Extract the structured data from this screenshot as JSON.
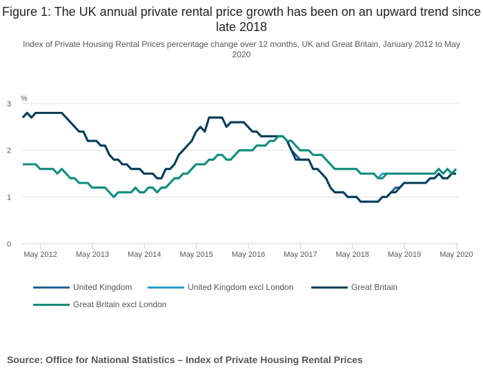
{
  "title": "Figure 1: The UK annual private rental price growth has been on an upward trend since late 2018",
  "subtitle": "Index of Private Housing Rental Prices percentage change over 12 months, UK and Great Britain, January 2012 to May 2020",
  "source": "Source: Office for National Statistics – Index of Private Housing Rental Prices",
  "chart_data": {
    "type": "line",
    "title": "Figure 1: The UK annual private rental price growth has been on an upward trend since late 2018",
    "xlabel": "",
    "ylabel": "%",
    "ylim": [
      0,
      3
    ],
    "yticks": [
      0,
      1,
      2,
      3
    ],
    "grid": true,
    "legend_position": "bottom",
    "x_start": "Jan 2012",
    "x_end": "May 2020",
    "x_tick_labels": [
      "May 2012",
      "May 2013",
      "May 2014",
      "May 2015",
      "May 2016",
      "May 2017",
      "May 2018",
      "May 2019",
      "May 2020"
    ],
    "x_tick_months": [
      4,
      16,
      28,
      40,
      52,
      64,
      76,
      88,
      100
    ],
    "series": [
      {
        "name": "United Kingdom",
        "color": "#206095",
        "values": [
          2.7,
          2.8,
          2.7,
          2.8,
          2.8,
          2.8,
          2.8,
          2.8,
          2.8,
          2.8,
          2.7,
          2.6,
          2.5,
          2.4,
          2.4,
          2.2,
          2.2,
          2.2,
          2.1,
          2.1,
          1.9,
          1.8,
          1.8,
          1.7,
          1.7,
          1.6,
          1.6,
          1.6,
          1.5,
          1.5,
          1.5,
          1.4,
          1.4,
          1.6,
          1.6,
          1.7,
          1.9,
          2.0,
          2.1,
          2.2,
          2.4,
          2.5,
          2.4,
          2.7,
          2.7,
          2.7,
          2.7,
          2.5,
          2.6,
          2.6,
          2.6,
          2.6,
          2.5,
          2.4,
          2.4,
          2.3,
          2.3,
          2.3,
          2.3,
          2.3,
          2.3,
          2.2,
          2.0,
          1.9,
          1.8,
          1.8,
          1.8,
          1.6,
          1.6,
          1.5,
          1.4,
          1.2,
          1.1,
          1.1,
          1.1,
          1.0,
          1.0,
          1.0,
          0.9,
          0.9,
          0.9,
          0.9,
          0.9,
          1.0,
          1.0,
          1.1,
          1.2,
          1.2,
          1.3,
          1.3,
          1.3,
          1.3,
          1.3,
          1.3,
          1.4,
          1.4,
          1.5,
          1.4,
          1.4,
          1.5,
          1.5
        ]
      },
      {
        "name": "United Kingdom excl London",
        "color": "#27a0cc",
        "values": [
          1.7,
          1.7,
          1.7,
          1.7,
          1.6,
          1.6,
          1.6,
          1.6,
          1.5,
          1.6,
          1.5,
          1.4,
          1.4,
          1.3,
          1.3,
          1.3,
          1.2,
          1.2,
          1.2,
          1.2,
          1.1,
          1.0,
          1.1,
          1.1,
          1.1,
          1.1,
          1.2,
          1.1,
          1.1,
          1.2,
          1.2,
          1.1,
          1.2,
          1.2,
          1.3,
          1.4,
          1.4,
          1.5,
          1.5,
          1.6,
          1.7,
          1.7,
          1.7,
          1.8,
          1.8,
          1.9,
          1.9,
          1.8,
          1.8,
          1.9,
          2.0,
          2.0,
          2.0,
          2.0,
          2.1,
          2.1,
          2.1,
          2.2,
          2.2,
          2.3,
          2.3,
          2.2,
          2.2,
          2.1,
          2.0,
          2.0,
          2.0,
          1.9,
          1.9,
          1.9,
          1.8,
          1.7,
          1.6,
          1.6,
          1.6,
          1.6,
          1.6,
          1.6,
          1.5,
          1.5,
          1.5,
          1.5,
          1.4,
          1.5,
          1.5,
          1.5,
          1.5,
          1.5,
          1.5,
          1.5,
          1.5,
          1.5,
          1.5,
          1.5,
          1.5,
          1.5,
          1.6,
          1.5,
          1.6,
          1.5,
          1.6
        ]
      },
      {
        "name": "Great Britain",
        "color": "#003c57",
        "values": [
          2.7,
          2.8,
          2.7,
          2.8,
          2.8,
          2.8,
          2.8,
          2.8,
          2.8,
          2.8,
          2.7,
          2.6,
          2.5,
          2.4,
          2.4,
          2.2,
          2.2,
          2.2,
          2.1,
          2.1,
          1.9,
          1.8,
          1.8,
          1.7,
          1.7,
          1.6,
          1.6,
          1.6,
          1.5,
          1.5,
          1.5,
          1.4,
          1.4,
          1.6,
          1.6,
          1.7,
          1.9,
          2.0,
          2.1,
          2.2,
          2.4,
          2.5,
          2.4,
          2.7,
          2.7,
          2.7,
          2.7,
          2.5,
          2.6,
          2.6,
          2.6,
          2.6,
          2.5,
          2.4,
          2.4,
          2.3,
          2.3,
          2.3,
          2.3,
          2.3,
          2.3,
          2.2,
          2.0,
          1.8,
          1.8,
          1.8,
          1.8,
          1.6,
          1.6,
          1.5,
          1.4,
          1.2,
          1.1,
          1.1,
          1.1,
          1.0,
          1.0,
          1.0,
          0.9,
          0.9,
          0.9,
          0.9,
          0.9,
          1.0,
          1.0,
          1.1,
          1.1,
          1.2,
          1.3,
          1.3,
          1.3,
          1.3,
          1.3,
          1.3,
          1.4,
          1.4,
          1.5,
          1.4,
          1.4,
          1.5,
          1.5
        ]
      },
      {
        "name": "Great Britain excl London",
        "color": "#118c7b",
        "values": [
          1.7,
          1.7,
          1.7,
          1.7,
          1.6,
          1.6,
          1.6,
          1.6,
          1.5,
          1.6,
          1.5,
          1.4,
          1.4,
          1.3,
          1.3,
          1.3,
          1.2,
          1.2,
          1.2,
          1.2,
          1.1,
          1.0,
          1.1,
          1.1,
          1.1,
          1.1,
          1.2,
          1.1,
          1.1,
          1.2,
          1.2,
          1.1,
          1.2,
          1.2,
          1.3,
          1.4,
          1.4,
          1.5,
          1.5,
          1.6,
          1.7,
          1.7,
          1.7,
          1.8,
          1.8,
          1.9,
          1.9,
          1.8,
          1.8,
          1.9,
          2.0,
          2.0,
          2.0,
          2.0,
          2.1,
          2.1,
          2.1,
          2.2,
          2.2,
          2.3,
          2.3,
          2.2,
          2.2,
          2.1,
          2.0,
          2.0,
          2.0,
          1.9,
          1.9,
          1.9,
          1.8,
          1.7,
          1.6,
          1.6,
          1.6,
          1.6,
          1.6,
          1.6,
          1.5,
          1.5,
          1.5,
          1.5,
          1.4,
          1.4,
          1.5,
          1.5,
          1.5,
          1.5,
          1.5,
          1.5,
          1.5,
          1.5,
          1.5,
          1.5,
          1.5,
          1.5,
          1.6,
          1.5,
          1.6,
          1.5,
          1.6
        ]
      }
    ]
  }
}
